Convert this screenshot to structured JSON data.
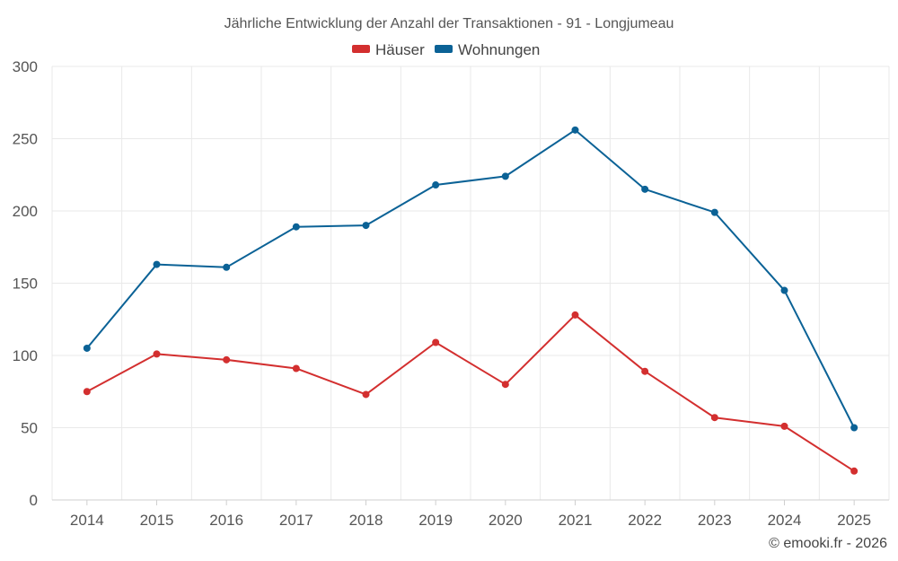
{
  "chart_data": {
    "type": "line",
    "title": "Jährliche Entwicklung der Anzahl der Transaktionen - 91 - Longjumeau",
    "categories": [
      "2014",
      "2015",
      "2016",
      "2017",
      "2018",
      "2019",
      "2020",
      "2021",
      "2022",
      "2023",
      "2024",
      "2025"
    ],
    "series": [
      {
        "name": "Häuser",
        "color": "#d32f2f",
        "values": [
          75,
          101,
          97,
          91,
          73,
          109,
          80,
          128,
          89,
          57,
          51,
          20
        ]
      },
      {
        "name": "Wohnungen",
        "color": "#0b6296",
        "values": [
          105,
          163,
          161,
          189,
          190,
          218,
          224,
          256,
          215,
          199,
          145,
          50
        ]
      }
    ],
    "ylim": [
      0,
      300
    ],
    "yticks": [
      0,
      50,
      100,
      150,
      200,
      250,
      300
    ],
    "grid": true,
    "legend": "top-center",
    "xlabel": "",
    "ylabel": ""
  },
  "credit": "© emooki.fr - 2026"
}
